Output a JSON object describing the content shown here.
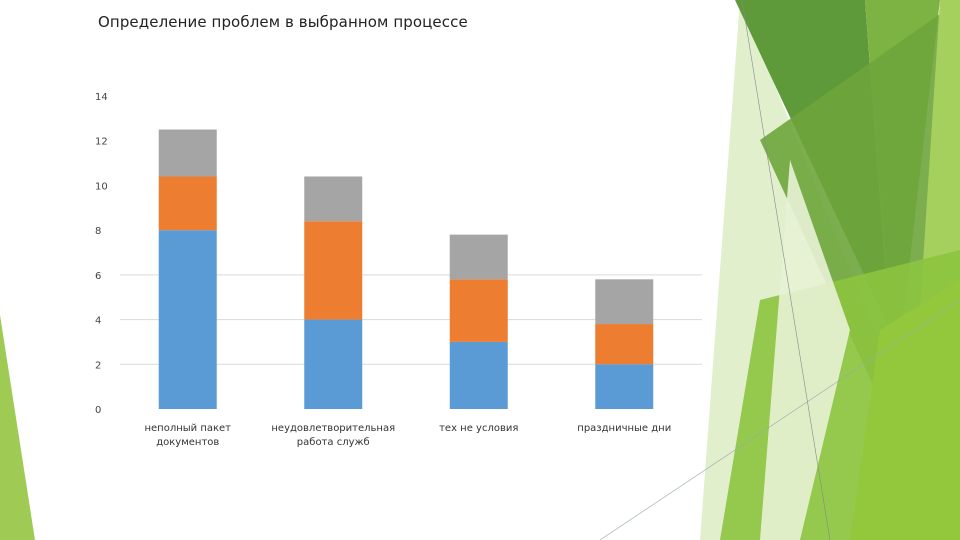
{
  "slide": {
    "title": "Определение проблем в выбранном процессе"
  },
  "colors": {
    "series1": "#5b9bd5",
    "series2": "#ed7d31",
    "series3": "#a5a5a5",
    "grid": "#d9d9d9",
    "green_dark": "#5f9a3a",
    "green_mid": "#7fba3a",
    "green_light": "#a9d26a",
    "green_pale": "#d5e8b5"
  },
  "chart_data": {
    "type": "bar",
    "stacked": true,
    "categories": [
      [
        "неполный пакет",
        "документов"
      ],
      [
        "неудовлетворительная",
        "работа служб"
      ],
      [
        "тех не условия"
      ],
      [
        "праздничные дни"
      ]
    ],
    "series": [
      {
        "values": [
          8,
          4,
          3,
          2
        ]
      },
      {
        "values": [
          2.4,
          4.4,
          2.8,
          1.8
        ]
      },
      {
        "values": [
          2.1,
          2.0,
          2.0,
          2.0
        ]
      }
    ],
    "y_ticks": [
      "0",
      "2",
      "4",
      "6",
      "8",
      "10",
      "12",
      "14"
    ],
    "ylim": [
      0,
      14
    ],
    "grid": true,
    "legend": "none"
  }
}
